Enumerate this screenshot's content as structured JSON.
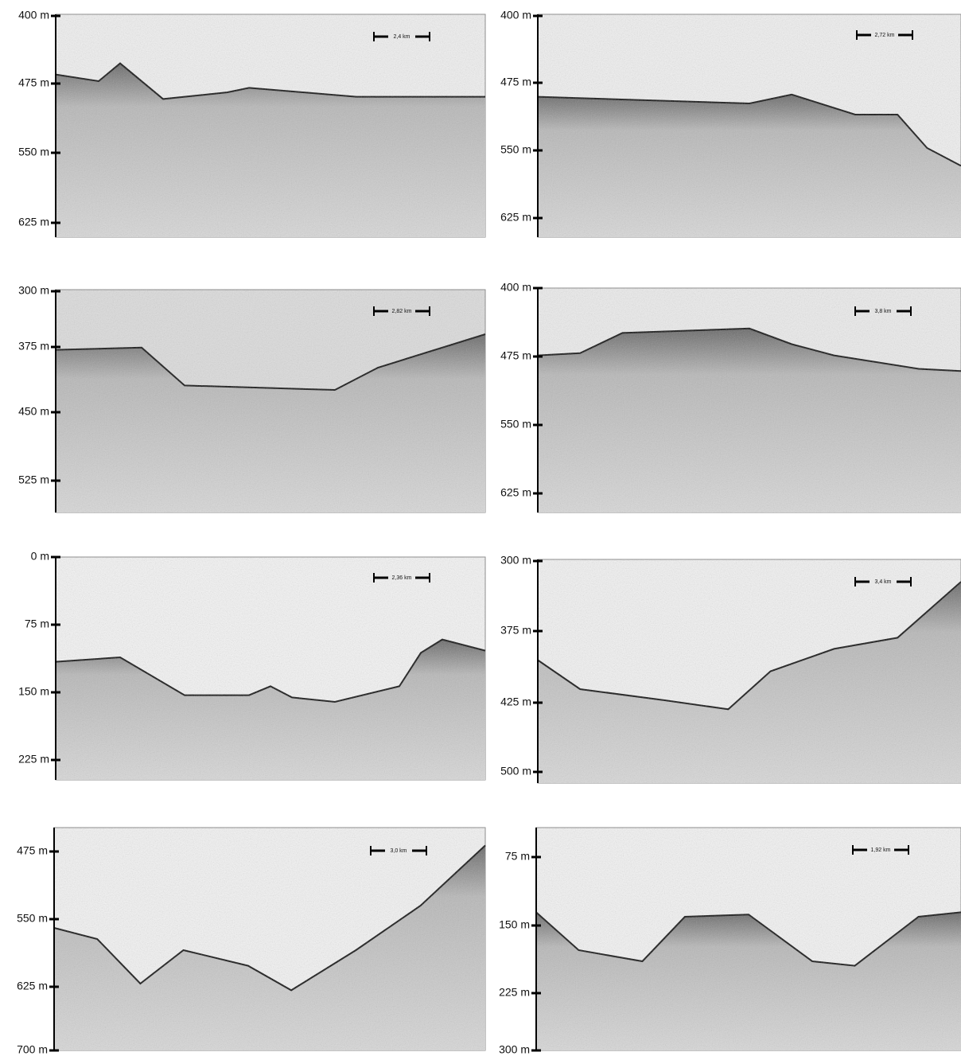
{
  "panels": [
    {
      "ticks": [
        "400 m",
        "475 m",
        "550 m",
        "625 m"
      ],
      "scale": "2,4 km"
    },
    {
      "ticks": [
        "400 m",
        "475 m",
        "550 m",
        "625 m"
      ],
      "scale": "2,72 km"
    },
    {
      "ticks": [
        "300 m",
        "375 m",
        "450 m",
        "525 m"
      ],
      "scale": "2,82 km"
    },
    {
      "ticks": [
        "400 m",
        "475 m",
        "550 m",
        "625 m"
      ],
      "scale": "3,8 km"
    },
    {
      "ticks": [
        "0 m",
        "75 m",
        "150 m",
        "225 m"
      ],
      "scale": "2,36 km"
    },
    {
      "ticks": [
        "300 m",
        "375 m",
        "425 m",
        "500 m"
      ],
      "scale": "3,4 km"
    },
    {
      "ticks": [
        "475 m",
        "550 m",
        "625 m",
        "700 m"
      ],
      "scale": "3,0 km"
    },
    {
      "ticks": [
        "75 m",
        "150 m",
        "225 m",
        "300 m"
      ],
      "scale": "1,92 km"
    }
  ]
}
